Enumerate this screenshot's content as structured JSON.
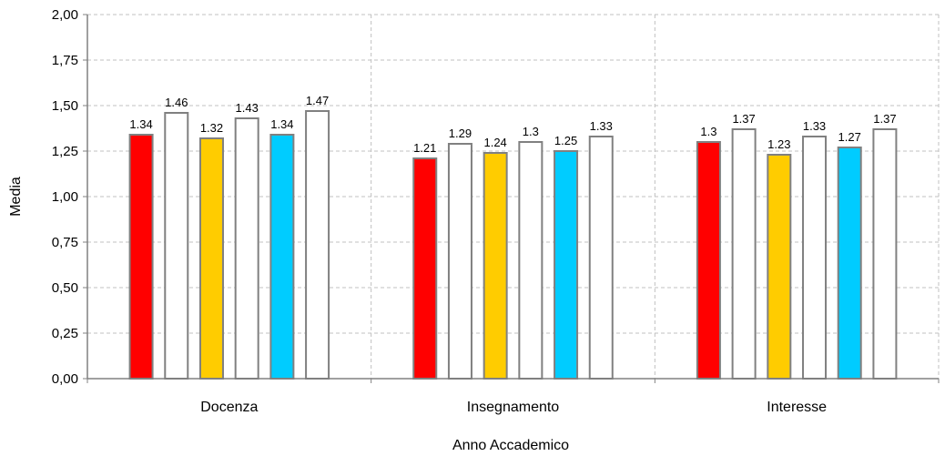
{
  "chart_data": {
    "type": "bar",
    "xlabel": "Anno Accademico",
    "ylabel": "Media",
    "ylim": [
      0,
      2
    ],
    "yticks": [
      "0,00",
      "0,25",
      "0,50",
      "0,75",
      "1,00",
      "1,25",
      "1,50",
      "1,75",
      "2,00"
    ],
    "grid": true,
    "categories": [
      "Docenza",
      "Insegnamento",
      "Interesse"
    ],
    "series": [
      {
        "values": [
          1.34,
          1.21,
          1.3
        ],
        "labels": [
          "1.34",
          "1.21",
          "1.3"
        ],
        "color": "#ff0000"
      },
      {
        "values": [
          1.46,
          1.29,
          1.37
        ],
        "labels": [
          "1.46",
          "1.29",
          "1.37"
        ],
        "color": "#ffffff"
      },
      {
        "values": [
          1.32,
          1.24,
          1.23
        ],
        "labels": [
          "1.32",
          "1.24",
          "1.23"
        ],
        "color": "#ffcc00"
      },
      {
        "values": [
          1.43,
          1.3,
          1.33
        ],
        "labels": [
          "1.43",
          "1.3",
          "1.33"
        ],
        "color": "#ffffff"
      },
      {
        "values": [
          1.34,
          1.25,
          1.27
        ],
        "labels": [
          "1.34",
          "1.25",
          "1.27"
        ],
        "color": "#00ccff"
      },
      {
        "values": [
          1.47,
          1.33,
          1.37
        ],
        "labels": [
          "1.47",
          "1.33",
          "1.37"
        ],
        "color": "#ffffff"
      }
    ],
    "colors": {
      "bar_border": "#808080",
      "grid": "#c0c0c0",
      "axis": "#808080"
    }
  }
}
